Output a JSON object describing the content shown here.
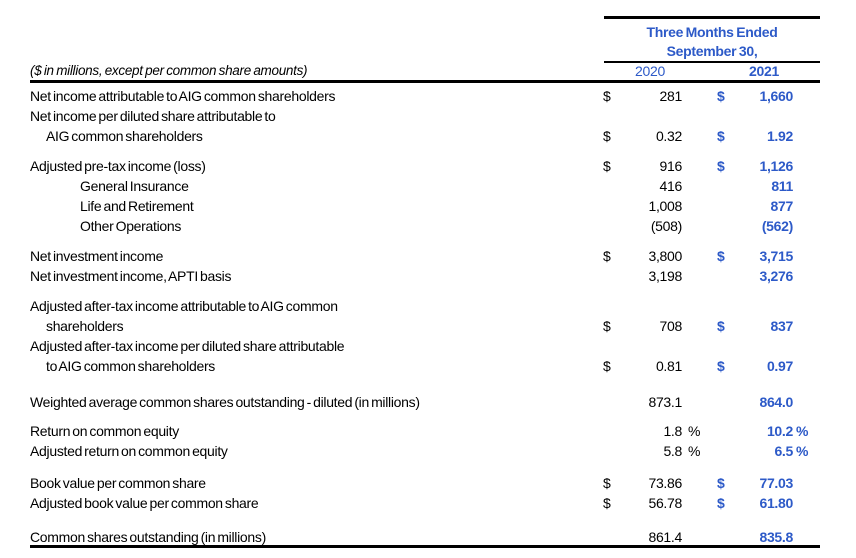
{
  "table": {
    "period_header_line1": "Three Months Ended",
    "period_header_line2": "September 30,",
    "note": "($ in millions, except per common share amounts)",
    "col_2020": "2020",
    "col_2021": "2021",
    "colors": {
      "accent_blue": "#2d5ac8",
      "text_black": "#000000",
      "rule_black": "#000000",
      "background": "#ffffff"
    },
    "rows": [
      {
        "label": "Net income attributable to AIG common shareholders",
        "ind": 0,
        "d20": "$",
        "v20": "281",
        "p20": "",
        "d21": "$",
        "v21": "1,660",
        "p21": ""
      },
      {
        "label": "Net income per diluted share attributable to",
        "ind": 0,
        "d20": "",
        "v20": "",
        "p20": "",
        "d21": "",
        "v21": "",
        "p21": ""
      },
      {
        "label": "AIG common shareholders",
        "ind": 1,
        "d20": "$",
        "v20": "0.32",
        "p20": "",
        "d21": "$",
        "v21": "1.92",
        "p21": ""
      },
      {
        "gap": 10
      },
      {
        "label": "Adjusted pre-tax income (loss)",
        "ind": 0,
        "d20": "$",
        "v20": "916",
        "p20": "",
        "d21": "$",
        "v21": "1,126",
        "p21": ""
      },
      {
        "label": "General Insurance",
        "ind": 2,
        "d20": "",
        "v20": "416",
        "p20": "",
        "d21": "",
        "v21": "811",
        "p21": ""
      },
      {
        "label": "Life and Retirement",
        "ind": 2,
        "d20": "",
        "v20": "1,008",
        "p20": "",
        "d21": "",
        "v21": "877",
        "p21": ""
      },
      {
        "label": "Other Operations",
        "ind": 2,
        "d20": "",
        "v20": "(508)",
        "p20": "",
        "d21": "",
        "v21": "(562)",
        "p21": ""
      },
      {
        "gap": 10
      },
      {
        "label": "Net investment income",
        "ind": 0,
        "d20": "$",
        "v20": "3,800",
        "p20": "",
        "d21": "$",
        "v21": "3,715",
        "p21": ""
      },
      {
        "label": "Net investment income, APTI basis",
        "ind": 0,
        "d20": "",
        "v20": "3,198",
        "p20": "",
        "d21": "",
        "v21": "3,276",
        "p21": ""
      },
      {
        "gap": 10
      },
      {
        "label": "Adjusted after-tax income attributable to AIG common",
        "ind": 0,
        "d20": "",
        "v20": "",
        "p20": "",
        "d21": "",
        "v21": "",
        "p21": ""
      },
      {
        "label": "shareholders",
        "ind": 1,
        "d20": "$",
        "v20": "708",
        "p20": "",
        "d21": "$",
        "v21": "837",
        "p21": ""
      },
      {
        "label": "Adjusted after-tax income per diluted share attributable",
        "ind": 0,
        "d20": "",
        "v20": "",
        "p20": "",
        "d21": "",
        "v21": "",
        "p21": ""
      },
      {
        "label": "to AIG common shareholders",
        "ind": 1,
        "d20": "$",
        "v20": "0.81",
        "p20": "",
        "d21": "$",
        "v21": "0.97",
        "p21": ""
      },
      {
        "gap": 16
      },
      {
        "label": "Weighted average common shares outstanding - diluted (in millions)",
        "ind": 0,
        "d20": "",
        "v20": "873.1",
        "p20": "",
        "d21": "",
        "v21": "864.0",
        "p21": ""
      },
      {
        "gap": 9
      },
      {
        "label": "Return on common equity",
        "ind": 0,
        "d20": "",
        "v20": "1.8",
        "p20": "%",
        "d21": "",
        "v21": "10.2",
        "p21": "%"
      },
      {
        "label": "Adjusted return on common equity",
        "ind": 0,
        "d20": "",
        "v20": "5.8",
        "p20": "%",
        "d21": "",
        "v21": "6.5",
        "p21": "%"
      },
      {
        "gap": 12
      },
      {
        "label": "Book value per common share",
        "ind": 0,
        "d20": "$",
        "v20": "73.86",
        "p20": "",
        "d21": "$",
        "v21": "77.03",
        "p21": ""
      },
      {
        "label": "Adjusted book value per common share",
        "ind": 0,
        "d20": "$",
        "v20": "56.78",
        "p20": "",
        "d21": "$",
        "v21": "61.80",
        "p21": ""
      },
      {
        "gap": 14
      },
      {
        "label": "Common shares outstanding (in millions)",
        "ind": 0,
        "d20": "",
        "v20": "861.4",
        "p20": "",
        "d21": "",
        "v21": "835.8",
        "p21": ""
      }
    ]
  }
}
